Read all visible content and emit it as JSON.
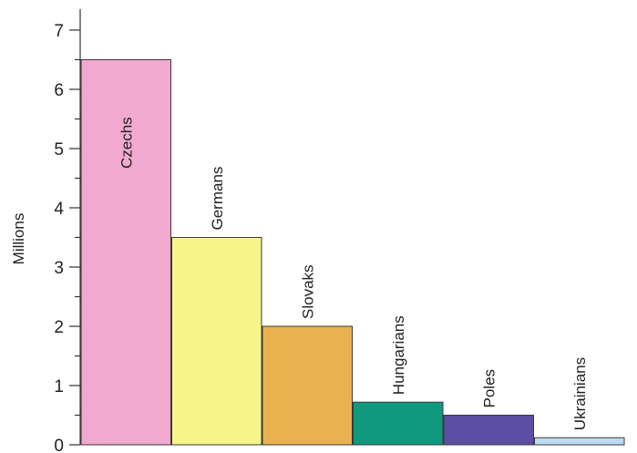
{
  "chart_data": {
    "type": "bar",
    "title": "",
    "xlabel": "",
    "ylabel": "Millions",
    "ylim": [
      0,
      7
    ],
    "yticks": [
      0,
      1,
      2,
      3,
      4,
      5,
      6,
      7
    ],
    "grid": false,
    "categories": [
      "Czechs",
      "Germans",
      "Slovaks",
      "Hungarians",
      "Poles",
      "Ukrainians"
    ],
    "values": [
      6.5,
      3.5,
      2.0,
      0.72,
      0.5,
      0.12
    ],
    "colors": [
      "#f2a9cf",
      "#f7f58a",
      "#e8b24f",
      "#0f9a7e",
      "#5c4ea3",
      "#b9dcf2"
    ]
  }
}
